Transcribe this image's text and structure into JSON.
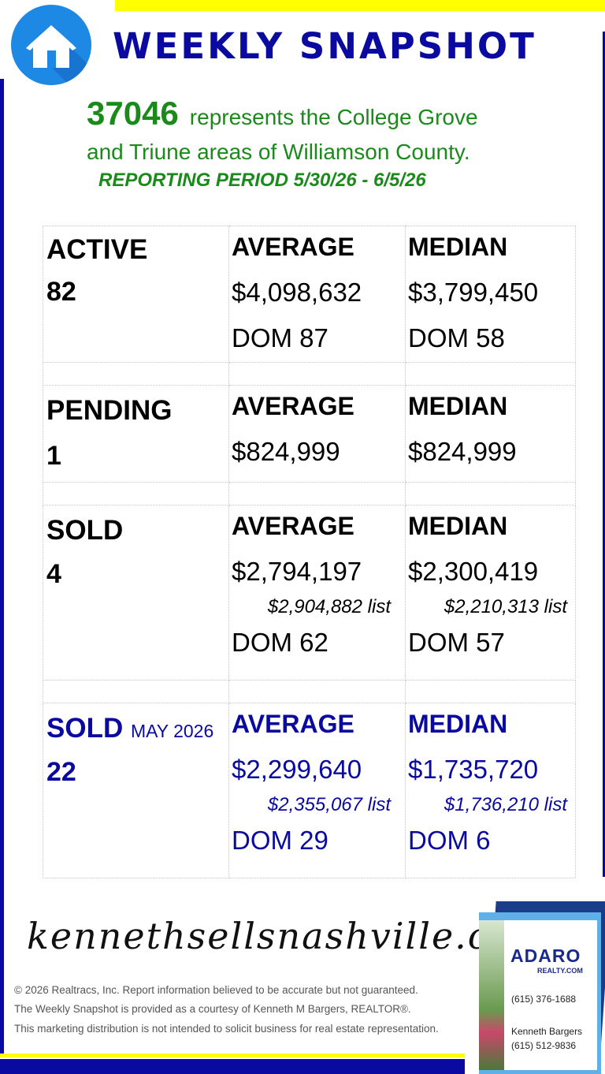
{
  "header": {
    "title": "WEEKLY SNAPSHOT",
    "logo_icon": "house-icon"
  },
  "intro": {
    "zip": "37046",
    "line1_rest": "represents the College Grove",
    "line2": "and Triune areas of Williamson County.",
    "period": "REPORTING PERIOD 5/30/26 - 6/5/26"
  },
  "sections": {
    "active": {
      "label": "ACTIVE",
      "count": "82",
      "average": {
        "header": "AVERAGE",
        "price": "$4,098,632",
        "dom": "DOM 87"
      },
      "median": {
        "header": "MEDIAN",
        "price": "$3,799,450",
        "dom": "DOM 58"
      }
    },
    "pending": {
      "label": "PENDING",
      "count": "1",
      "average": {
        "header": "AVERAGE",
        "price": "$824,999"
      },
      "median": {
        "header": "MEDIAN",
        "price": "$824,999"
      }
    },
    "sold": {
      "label": "SOLD",
      "count": "4",
      "average": {
        "header": "AVERAGE",
        "price": "$2,794,197",
        "list": "$2,904,882 list",
        "dom": "DOM 62"
      },
      "median": {
        "header": "MEDIAN",
        "price": "$2,300,419",
        "list": "$2,210,313 list",
        "dom": "DOM 57"
      }
    },
    "sold_month": {
      "label": "SOLD",
      "month": "MAY 2026",
      "count": "22",
      "average": {
        "header": "AVERAGE",
        "price": "$2,299,640",
        "list": "$2,355,067 list",
        "dom": "DOM 29"
      },
      "median": {
        "header": "MEDIAN",
        "price": "$1,735,720",
        "list": "$1,736,210 list",
        "dom": "DOM 6"
      }
    }
  },
  "footer": {
    "website": "kennethsellsnashville.com",
    "disclaimer1": "© 2026 Realtracs, Inc. Report information believed to be accurate but not guaranteed.",
    "disclaimer2": "The Weekly Snapshot is provided as a courtesy of Kenneth M Bargers, REALTOR®.",
    "disclaimer3": "This marketing distribution is not intended to solicit business for real estate representation."
  },
  "card": {
    "brand": "ADARO",
    "brand_sub": "REALTY.COM",
    "office_phone": "(615) 376-1688",
    "agent_name": "Kenneth Bargers",
    "agent_phone": "(615) 512-9836"
  },
  "colors": {
    "accent_blue": "#0a0aa0",
    "intro_green": "#1a8a1a",
    "bar_yellow": "#ffff00",
    "logo_blue": "#1e88e5"
  }
}
